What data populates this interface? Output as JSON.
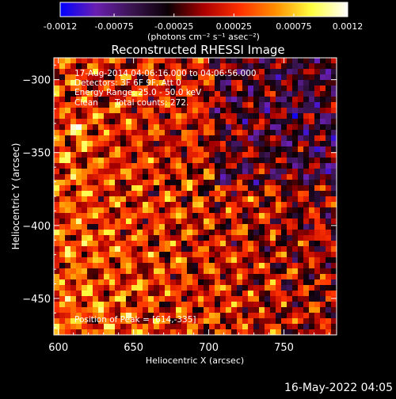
{
  "chart_data": {
    "type": "heatmap",
    "title": "Reconstructed RHESSI Image",
    "xlabel": "Heliocentric X (arcsec)",
    "ylabel": "Heliocentric Y (arcsec)",
    "xlim": [
      597,
      785
    ],
    "ylim": [
      -475,
      -285
    ],
    "x_ticks": [
      600,
      650,
      700,
      750
    ],
    "y_ticks": [
      -300,
      -350,
      -400,
      -450
    ],
    "colorbar": {
      "range": [
        -0.0012,
        0.0012
      ],
      "tick_values": [
        -0.0012,
        -0.00075,
        -0.00025,
        0.00025,
        0.00075,
        0.0012
      ],
      "tick_labels": [
        "-0.0012",
        "-0.00075",
        "-0.00025",
        "0.00025",
        "0.00075",
        "0.0012"
      ],
      "unit_label": "(photons cm⁻² s⁻¹ asec⁻²)",
      "colors": [
        "#0000ff",
        "#6a1fb0",
        "#3a1450",
        "#0a0005",
        "#aa0000",
        "#ff3000",
        "#ff9000",
        "#ffff40",
        "#ffffff"
      ]
    },
    "annotations": {
      "time_range": "17-Aug-2014 04:06:16.000 to 04:06:56.000",
      "detectors": "Detectors: 3F 6F 9F, Att 0",
      "energy": "Energy Range: 25.0 - 50.0 keV",
      "method": "Clean",
      "counts": "Total counts: 272.",
      "peak": "Position of Peak = [614,-335]"
    },
    "peak": [
      614,
      -335
    ]
  },
  "footer": {
    "timestamp": "16-May-2022 04:05"
  }
}
